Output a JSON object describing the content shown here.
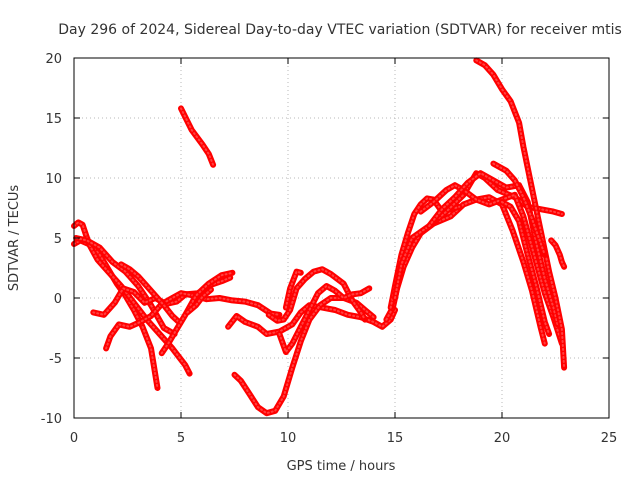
{
  "chart_data": {
    "type": "scatter",
    "title": "Day 296 of 2024, Sidereal Day-to-day VTEC variation (SDTVAR) for receiver mtis",
    "xlabel": "GPS time / hours",
    "ylabel": "SDTVAR / TECUs",
    "xlim": [
      0,
      25
    ],
    "ylim": [
      -10,
      20
    ],
    "xticks": [
      0,
      5,
      10,
      15,
      20,
      25
    ],
    "yticks": [
      -10,
      -5,
      0,
      5,
      10,
      15,
      20
    ],
    "grid": true,
    "marker": "plus",
    "color": "#ff0000",
    "series": [
      {
        "name": "s1",
        "points": [
          [
            0,
            4.5
          ],
          [
            0.3,
            4.8
          ],
          [
            0.8,
            4.4
          ],
          [
            1.2,
            3.6
          ],
          [
            1.6,
            2.4
          ],
          [
            2.0,
            1.2
          ],
          [
            2.4,
            0.2
          ],
          [
            2.8,
            -1.0
          ],
          [
            3.2,
            -2.4
          ],
          [
            3.6,
            -4.2
          ],
          [
            3.9,
            -7.5
          ]
        ]
      },
      {
        "name": "s2",
        "points": [
          [
            0,
            6.0
          ],
          [
            0.2,
            6.3
          ],
          [
            0.4,
            6.1
          ],
          [
            0.7,
            4.5
          ],
          [
            1.1,
            3.2
          ],
          [
            1.6,
            2.2
          ],
          [
            2.2,
            1.0
          ],
          [
            2.8,
            -0.4
          ],
          [
            3.4,
            -1.8
          ],
          [
            4.0,
            -3.0
          ],
          [
            4.6,
            -4.2
          ],
          [
            5.2,
            -5.6
          ],
          [
            5.4,
            -6.3
          ]
        ]
      },
      {
        "name": "s3",
        "points": [
          [
            0.1,
            5.0
          ],
          [
            0.6,
            4.8
          ],
          [
            1.2,
            4.2
          ],
          [
            1.8,
            3.0
          ],
          [
            2.4,
            2.2
          ],
          [
            3.0,
            1.0
          ],
          [
            3.6,
            -0.6
          ],
          [
            4.2,
            -2.5
          ],
          [
            4.7,
            -3.0
          ]
        ]
      },
      {
        "name": "s4",
        "points": [
          [
            0.9,
            -1.2
          ],
          [
            1.4,
            -1.4
          ],
          [
            1.9,
            -0.4
          ],
          [
            2.3,
            0.8
          ],
          [
            2.8,
            0.5
          ],
          [
            3.3,
            -0.4
          ],
          [
            3.8,
            0.0
          ],
          [
            4.3,
            -0.5
          ],
          [
            4.8,
            -0.3
          ],
          [
            5.2,
            0.3
          ],
          [
            5.8,
            0.4
          ],
          [
            6.4,
            1.1
          ],
          [
            6.9,
            1.4
          ],
          [
            7.3,
            1.7
          ]
        ]
      },
      {
        "name": "s5",
        "points": [
          [
            1.5,
            -4.2
          ],
          [
            1.7,
            -3.2
          ],
          [
            2.1,
            -2.2
          ],
          [
            2.6,
            -2.4
          ],
          [
            3.1,
            -2.0
          ],
          [
            3.6,
            -1.5
          ],
          [
            4.1,
            -0.5
          ],
          [
            4.6,
            0.0
          ],
          [
            5.0,
            0.4
          ],
          [
            5.6,
            0.2
          ],
          [
            6.2,
            -0.1
          ],
          [
            6.8,
            0.0
          ],
          [
            7.4,
            -0.2
          ],
          [
            8.0,
            -0.3
          ],
          [
            8.6,
            -0.6
          ],
          [
            9.2,
            -1.3
          ],
          [
            9.6,
            -1.4
          ]
        ]
      },
      {
        "name": "s6",
        "points": [
          [
            2.2,
            2.8
          ],
          [
            2.6,
            2.4
          ],
          [
            3.0,
            1.8
          ],
          [
            3.4,
            1.0
          ],
          [
            3.8,
            0.2
          ],
          [
            4.2,
            -0.6
          ],
          [
            4.6,
            -1.5
          ],
          [
            4.9,
            -2.0
          ]
        ]
      },
      {
        "name": "s7",
        "points": [
          [
            4.1,
            -4.6
          ],
          [
            4.4,
            -3.8
          ],
          [
            4.8,
            -2.6
          ],
          [
            5.2,
            -1.4
          ],
          [
            5.7,
            0.2
          ],
          [
            6.3,
            1.2
          ],
          [
            6.9,
            1.9
          ],
          [
            7.4,
            2.1
          ]
        ]
      },
      {
        "name": "s8",
        "points": [
          [
            5.3,
            -1.2
          ],
          [
            5.7,
            -0.6
          ],
          [
            6.0,
            0.1
          ],
          [
            6.4,
            0.7
          ]
        ]
      },
      {
        "name": "s9",
        "points": [
          [
            5.0,
            15.8
          ],
          [
            5.5,
            14.0
          ],
          [
            6.0,
            12.8
          ],
          [
            6.3,
            12.0
          ],
          [
            6.5,
            11.1
          ]
        ]
      },
      {
        "name": "s10",
        "points": [
          [
            7.2,
            -2.4
          ],
          [
            7.6,
            -1.5
          ],
          [
            8.0,
            -2.0
          ],
          [
            8.6,
            -2.4
          ],
          [
            9.0,
            -3.0
          ],
          [
            9.6,
            -2.8
          ],
          [
            10.2,
            -2.2
          ],
          [
            10.6,
            -1.2
          ],
          [
            11.0,
            -0.6
          ],
          [
            11.6,
            -0.8
          ],
          [
            12.2,
            -1.0
          ],
          [
            12.8,
            -1.4
          ],
          [
            13.4,
            -1.6
          ],
          [
            14.0,
            -2.0
          ],
          [
            14.4,
            -2.4
          ],
          [
            14.8,
            -1.8
          ],
          [
            15.0,
            -1.0
          ]
        ]
      },
      {
        "name": "s11",
        "points": [
          [
            7.5,
            -6.4
          ],
          [
            7.8,
            -6.9
          ],
          [
            8.2,
            -8.0
          ],
          [
            8.6,
            -9.1
          ],
          [
            9.0,
            -9.6
          ],
          [
            9.4,
            -9.4
          ],
          [
            9.8,
            -8.2
          ],
          [
            10.2,
            -5.8
          ],
          [
            10.6,
            -3.6
          ],
          [
            11.0,
            -1.8
          ],
          [
            11.5,
            -0.6
          ],
          [
            12.0,
            0.0
          ],
          [
            12.6,
            0.0
          ],
          [
            13.2,
            -0.4
          ],
          [
            13.6,
            -1.0
          ],
          [
            14.0,
            -1.6
          ]
        ]
      },
      {
        "name": "s12",
        "points": [
          [
            9.1,
            -1.4
          ],
          [
            9.5,
            -1.9
          ],
          [
            9.8,
            -1.8
          ],
          [
            10.1,
            -1.0
          ],
          [
            10.4,
            0.8
          ],
          [
            10.8,
            1.6
          ],
          [
            11.2,
            2.2
          ],
          [
            11.6,
            2.4
          ],
          [
            12.0,
            2.0
          ],
          [
            12.6,
            1.2
          ],
          [
            13.0,
            -0.2
          ],
          [
            13.4,
            -1.2
          ],
          [
            13.6,
            -1.8
          ]
        ]
      },
      {
        "name": "s13",
        "points": [
          [
            9.6,
            -3.0
          ],
          [
            9.9,
            -4.5
          ],
          [
            10.2,
            -3.8
          ],
          [
            10.6,
            -2.4
          ],
          [
            11.0,
            -1.0
          ],
          [
            11.4,
            0.4
          ],
          [
            11.8,
            1.0
          ],
          [
            12.2,
            0.6
          ],
          [
            12.6,
            0.0
          ],
          [
            13.0,
            0.3
          ],
          [
            13.4,
            0.4
          ],
          [
            13.8,
            0.8
          ]
        ]
      },
      {
        "name": "s14",
        "points": [
          [
            9.9,
            -0.8
          ],
          [
            10.1,
            0.8
          ],
          [
            10.4,
            2.2
          ],
          [
            10.6,
            2.1
          ]
        ]
      },
      {
        "name": "s15",
        "points": [
          [
            14.6,
            -1.8
          ],
          [
            14.9,
            -0.8
          ],
          [
            15.1,
            0.8
          ],
          [
            15.4,
            2.6
          ],
          [
            15.8,
            4.2
          ],
          [
            16.2,
            5.4
          ],
          [
            16.8,
            6.2
          ],
          [
            17.6,
            6.8
          ],
          [
            18.2,
            7.8
          ],
          [
            18.8,
            8.2
          ],
          [
            19.4,
            8.4
          ],
          [
            20.0,
            7.8
          ],
          [
            20.5,
            5.6
          ],
          [
            21.0,
            3.0
          ],
          [
            21.4,
            0.6
          ],
          [
            21.8,
            -2.4
          ],
          [
            22.0,
            -3.8
          ]
        ]
      },
      {
        "name": "s16",
        "points": [
          [
            14.8,
            -0.8
          ],
          [
            15.0,
            1.0
          ],
          [
            15.3,
            3.6
          ],
          [
            15.6,
            5.4
          ],
          [
            15.9,
            7.0
          ],
          [
            16.2,
            7.8
          ],
          [
            16.5,
            8.3
          ],
          [
            16.8,
            8.2
          ],
          [
            17.2,
            7.2
          ],
          [
            17.6,
            7.4
          ],
          [
            18.0,
            7.6
          ]
        ]
      },
      {
        "name": "s17",
        "points": [
          [
            15.0,
            0.0
          ],
          [
            15.3,
            2.8
          ],
          [
            15.8,
            5.0
          ],
          [
            16.6,
            6.0
          ],
          [
            17.4,
            7.2
          ],
          [
            18.2,
            8.6
          ],
          [
            18.8,
            10.4
          ],
          [
            19.2,
            10.0
          ],
          [
            19.8,
            9.0
          ],
          [
            20.6,
            8.4
          ],
          [
            21.2,
            7.6
          ],
          [
            21.8,
            7.4
          ],
          [
            22.4,
            7.2
          ],
          [
            22.8,
            7.0
          ]
        ]
      },
      {
        "name": "s18",
        "points": [
          [
            16.2,
            7.2
          ],
          [
            16.8,
            8.0
          ],
          [
            17.4,
            9.0
          ],
          [
            17.8,
            9.4
          ],
          [
            18.2,
            9.0
          ],
          [
            18.8,
            8.2
          ],
          [
            19.4,
            7.8
          ],
          [
            20.0,
            8.2
          ],
          [
            20.6,
            8.6
          ],
          [
            21.0,
            6.8
          ],
          [
            21.5,
            3.6
          ],
          [
            22.0,
            0.4
          ],
          [
            22.4,
            -1.6
          ],
          [
            22.8,
            -3.8
          ]
        ]
      },
      {
        "name": "s19",
        "points": [
          [
            16.6,
            6.0
          ],
          [
            17.2,
            7.4
          ],
          [
            17.8,
            8.4
          ],
          [
            18.4,
            9.6
          ],
          [
            19.0,
            10.4
          ],
          [
            19.6,
            9.8
          ],
          [
            20.2,
            9.2
          ],
          [
            20.8,
            9.4
          ],
          [
            21.2,
            8.0
          ],
          [
            21.6,
            4.6
          ],
          [
            22.0,
            1.6
          ],
          [
            22.4,
            -0.8
          ],
          [
            22.6,
            -2.2
          ]
        ]
      },
      {
        "name": "s20",
        "points": [
          [
            18.8,
            19.8
          ],
          [
            19.2,
            19.4
          ],
          [
            19.6,
            18.6
          ],
          [
            20.0,
            17.4
          ],
          [
            20.4,
            16.4
          ],
          [
            20.8,
            14.6
          ],
          [
            21.0,
            12.6
          ],
          [
            21.3,
            10.0
          ],
          [
            21.6,
            7.4
          ],
          [
            21.9,
            4.8
          ],
          [
            22.2,
            2.2
          ],
          [
            22.5,
            0.0
          ],
          [
            22.8,
            -2.6
          ],
          [
            22.9,
            -5.8
          ]
        ]
      },
      {
        "name": "s21",
        "points": [
          [
            19.6,
            11.2
          ],
          [
            20.2,
            10.6
          ],
          [
            20.6,
            9.8
          ],
          [
            21.0,
            8.4
          ],
          [
            21.4,
            6.6
          ],
          [
            21.8,
            4.6
          ],
          [
            22.0,
            3.6
          ]
        ]
      },
      {
        "name": "s22",
        "points": [
          [
            20.0,
            8.0
          ],
          [
            20.4,
            7.6
          ],
          [
            20.8,
            6.4
          ],
          [
            21.2,
            3.6
          ],
          [
            21.6,
            1.0
          ],
          [
            22.0,
            -2.0
          ],
          [
            22.2,
            -3.0
          ]
        ]
      },
      {
        "name": "s23",
        "points": [
          [
            22.3,
            4.8
          ],
          [
            22.5,
            4.4
          ],
          [
            22.7,
            3.6
          ],
          [
            22.8,
            3.0
          ],
          [
            22.9,
            2.6
          ]
        ]
      }
    ]
  }
}
